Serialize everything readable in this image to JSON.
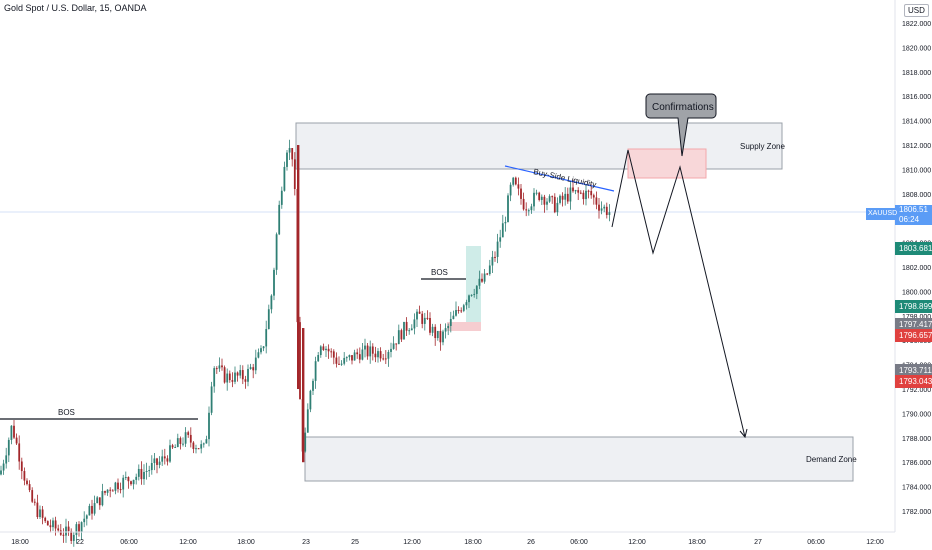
{
  "header": {
    "title": "Gold Spot / U.S. Dollar, 15, OANDA",
    "currency": "USD"
  },
  "colors": {
    "up": "#2f7f74",
    "down": "#a3262a",
    "zone_fill": "#eef0f3",
    "zone_stroke": "#9aa0a8",
    "confirm_fill": "#f8d7d9",
    "bos_box_green": "#cfece8",
    "bos_box_red": "#f6cdd0",
    "price_line": "#5b9cf6",
    "trendline": "#2962ff"
  },
  "labels": {
    "bos_left": "BOS",
    "bos_mid": "BOS",
    "buy_side": "Buy-Side Liquidity",
    "supply": "Supply Zone",
    "demand": "Demand Zone",
    "confirmations": "Confirmations"
  },
  "price_tags": [
    {
      "value": "1806.51",
      "sub": "06:24",
      "color": "#5b9cf6",
      "label": "XAUUSD"
    },
    {
      "value": "1803.681",
      "color": "#1e8a77"
    },
    {
      "value": "1798.899",
      "color": "#1e8a77"
    },
    {
      "value": "1797.417",
      "color": "#787b86"
    },
    {
      "value": "1796.657",
      "color": "#e0413f"
    },
    {
      "value": "1793.711",
      "color": "#787b86"
    },
    {
      "value": "1793.043",
      "color": "#e0413f"
    }
  ],
  "chart_data": {
    "type": "candlestick",
    "ylim": [
      1781,
      1823
    ],
    "y_ticks": [
      1782,
      1784,
      1786,
      1788,
      1790,
      1792,
      1794,
      1796,
      1798,
      1800,
      1802,
      1804,
      1806,
      1808,
      1810,
      1812,
      1814,
      1816,
      1818,
      1820,
      1822
    ],
    "x_ticks": [
      "18:00",
      "22",
      "06:00",
      "12:00",
      "18:00",
      "23",
      "25",
      "12:00",
      "18:00",
      "26",
      "06:00",
      "12:00",
      "18:00",
      "27",
      "06:00",
      "12:00"
    ],
    "path_points": [
      1809.0,
      1811.5,
      1805.8,
      1810.2,
      1788.2
    ]
  }
}
